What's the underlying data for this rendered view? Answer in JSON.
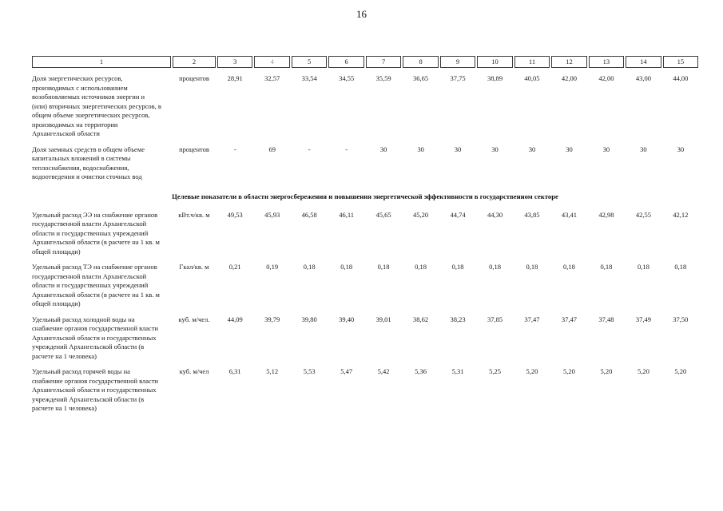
{
  "page_number": "16",
  "table": {
    "header": {
      "cells": [
        {
          "label": "1",
          "muted": false
        },
        {
          "label": "2",
          "muted": false
        },
        {
          "label": "3",
          "muted": false
        },
        {
          "label": "4",
          "muted": true
        },
        {
          "label": "5",
          "muted": false
        },
        {
          "label": "6",
          "muted": false
        },
        {
          "label": "7",
          "muted": false
        },
        {
          "label": "8",
          "muted": false
        },
        {
          "label": "9",
          "muted": false
        },
        {
          "label": "10",
          "muted": false
        },
        {
          "label": "11",
          "muted": false
        },
        {
          "label": "12",
          "muted": false
        },
        {
          "label": "13",
          "muted": false
        },
        {
          "label": "14",
          "muted": false
        },
        {
          "label": "15",
          "muted": false
        }
      ]
    },
    "groups": [
      {
        "heading": "",
        "rows": [
          {
            "name": "Доля энергетических ресурсов, производимых с использованием возобновляемых источников энергии и (или) вторичных энергетических ресурсов, в общем объеме энергетических ресурсов, производимых на территории Архангельской области",
            "unit": "процентов",
            "values": [
              "28,91",
              "32,57",
              "33,54",
              "34,55",
              "35,59",
              "36,65",
              "37,75",
              "38,89",
              "40,05",
              "42,00",
              "42,00",
              "43,00",
              "44,00"
            ]
          },
          {
            "name": "Доля заемных средств в общем объеме капитальных вложений в системы теплоснабжения, водоснабжения, водоотведения и очистки сточных вод",
            "unit": "процентов",
            "values": [
              "-",
              "69",
              "-",
              "-",
              "30",
              "30",
              "30",
              "30",
              "30",
              "30",
              "30",
              "30",
              "30"
            ]
          }
        ]
      },
      {
        "heading": "Целевые показатели в области энергосбережения и повышения энергетической эффективности в государственном секторе",
        "rows": [
          {
            "name": "Удельный расход ЭЭ на снабжение органов государственной власти Архангельской области и государственных учреждений Архангельской области (в расчете на 1 кв. м общей площади)",
            "unit": "кВт.ч/кв. м",
            "values": [
              "49,53",
              "45,93",
              "46,58",
              "46,11",
              "45,65",
              "45,20",
              "44,74",
              "44,30",
              "43,85",
              "43,41",
              "42,98",
              "42,55",
              "42,12"
            ]
          },
          {
            "name": "Удельный расход ТЭ на снабжение органов государственной власти Архангельской области и государственных учреждений Архангельской области (в расчете на 1 кв. м общей площади)",
            "unit": "Гкал/кв. м",
            "values": [
              "0,21",
              "0,19",
              "0,18",
              "0,18",
              "0,18",
              "0,18",
              "0,18",
              "0,18",
              "0,18",
              "0,18",
              "0,18",
              "0,18",
              "0,18"
            ]
          },
          {
            "name": "Удельный расход холодной воды на снабжение органов государственной власти Архангельской области и государственных учреждений Архангельской области (в расчете на 1 человека)",
            "unit": "куб. м/чел.",
            "values": [
              "44,09",
              "39,79",
              "39,80",
              "39,40",
              "39,01",
              "38,62",
              "38,23",
              "37,85",
              "37,47",
              "37,47",
              "37,48",
              "37,49",
              "37,50"
            ]
          },
          {
            "name": "Удельный расход горячей воды на снабжение органов государственной власти Архангельской области и государственных учреждений Архангельской области (в расчете на 1 человека)",
            "unit": "куб. м/чел",
            "values": [
              "6,31",
              "5,12",
              "5,53",
              "5,47",
              "5,42",
              "5,36",
              "5,31",
              "5,25",
              "5,20",
              "5,20",
              "5,20",
              "5,20",
              "5,20"
            ]
          }
        ]
      }
    ]
  }
}
